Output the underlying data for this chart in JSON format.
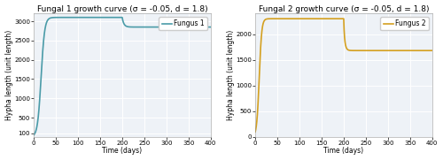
{
  "title1": "Fungal 1 growth curve (σ = -0.05, d = 1.8)",
  "title2": "Fungal 2 growth curve (σ = -0.05, d = 1.8)",
  "xlabel": "Time (days)",
  "ylabel": "Hypha length (unit length)",
  "legend1": "Fungus 1",
  "legend2": "Fungus 2",
  "color1": "#4a9ba8",
  "color2": "#d4a020",
  "bg_color": "#eef2f7",
  "grid_color": "#ffffff",
  "fig_facecolor": "#ffffff",
  "t_max": 400,
  "ylim1": [
    0,
    3200
  ],
  "ylim2": [
    0,
    2400
  ],
  "yticks1": [
    100,
    500,
    1000,
    1500,
    2000,
    2500,
    3000
  ],
  "yticks2": [
    0,
    500,
    1000,
    1500,
    2000
  ],
  "xticks": [
    0,
    50,
    100,
    150,
    200,
    250,
    300,
    350,
    400
  ],
  "K1_before": 3100,
  "K1_after": 2850,
  "K2_before": 2300,
  "K2_after": 1680,
  "perturbation_day": 200,
  "r1": 0.25,
  "r2": 0.35,
  "N0_1": 50,
  "N0_2": 100,
  "title_fontsize": 6.5,
  "label_fontsize": 5.5,
  "tick_fontsize": 5.0,
  "legend_fontsize": 5.5,
  "linewidth": 1.2
}
